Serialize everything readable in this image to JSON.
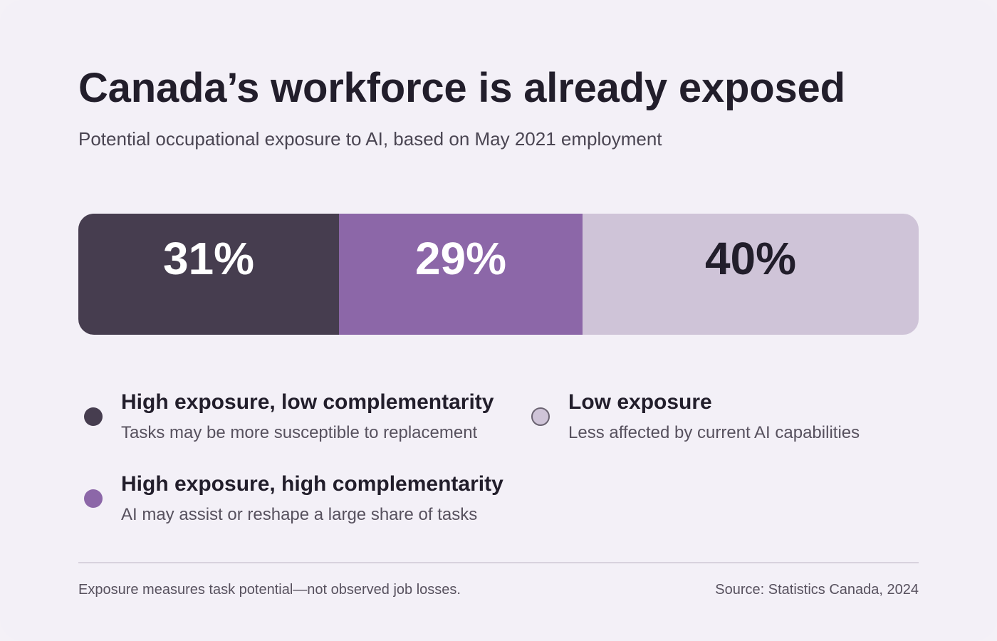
{
  "title": "Canada’s workforce is already exposed",
  "subtitle": "Potential occupational exposure to AI, based on May 2021 employment",
  "chart_data": {
    "type": "bar",
    "stacked": true,
    "orientation": "horizontal",
    "title": "Canada’s workforce is already exposed",
    "subtitle": "Potential occupational exposure to AI, based on May 2021 employment",
    "unit": "%",
    "series": [
      {
        "name": "High exposure, low complementarity",
        "value": 31,
        "label": "31%",
        "description": "Tasks may be more susceptible to replacement",
        "color": "#463d4f",
        "label_color": "#ffffff"
      },
      {
        "name": "High exposure, high complementarity",
        "value": 29,
        "label": "29%",
        "description": "AI may assist or reshape a large share of tasks",
        "color": "#8c67a8",
        "label_color": "#ffffff"
      },
      {
        "name": "Low exposure",
        "value": 40,
        "label": "40%",
        "description": "Less affected by current AI capabilities",
        "color": "#cfc4d8",
        "label_color": "#221e2b"
      }
    ],
    "total": 100,
    "legend_placement": "bottom"
  },
  "footer": {
    "note": "Exposure measures task potential—not observed job losses.",
    "source": "Source: Statistics Canada, 2024"
  }
}
